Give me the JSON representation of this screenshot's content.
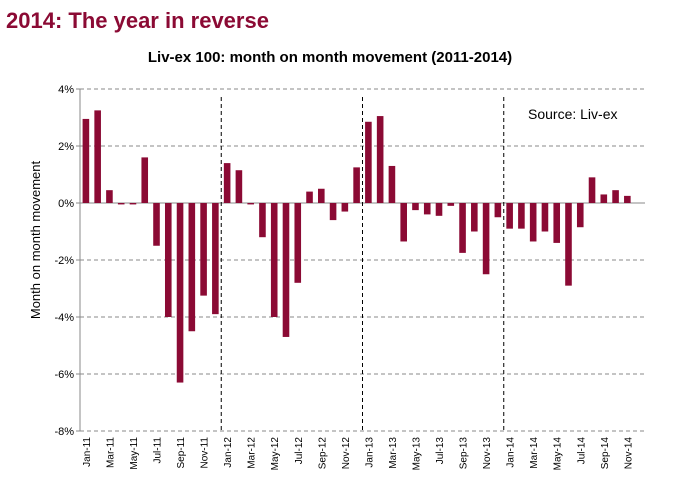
{
  "chart_data": {
    "type": "bar",
    "title": "2014: The year in reverse",
    "subtitle": "Liv-ex 100: month on month movement (2011-2014)",
    "ylabel": "Month on month movement",
    "annotation": "Source: Liv-ex",
    "color": "#8b0a34",
    "grid": true,
    "ylim": [
      -8,
      4
    ],
    "yticks": [
      {
        "value": 4,
        "label": "4%"
      },
      {
        "value": 2,
        "label": "2%"
      },
      {
        "value": 0,
        "label": "0%"
      },
      {
        "value": -2,
        "label": "-2%"
      },
      {
        "value": -4,
        "label": "-4%"
      },
      {
        "value": -6,
        "label": "-6%"
      },
      {
        "value": -8,
        "label": "-8%"
      }
    ],
    "categories": [
      "Jan-11",
      null,
      "Mar-11",
      null,
      "May-11",
      null,
      "Jul-11",
      null,
      "Sep-11",
      null,
      "Nov-11",
      null,
      "Jan-12",
      null,
      "Mar-12",
      null,
      "May-12",
      null,
      "Jul-12",
      null,
      "Sep-12",
      null,
      "Nov-12",
      null,
      "Jan-13",
      null,
      "Mar-13",
      null,
      "May-13",
      null,
      "Jul-13",
      null,
      "Sep-13",
      null,
      "Nov-13",
      null,
      "Jan-14",
      null,
      "Mar-14",
      null,
      "May-14",
      null,
      "Jul-14",
      null,
      "Sep-14",
      null,
      "Nov-14",
      null
    ],
    "values": [
      2.95,
      3.25,
      0.45,
      -0.05,
      -0.05,
      1.6,
      -1.5,
      -4.0,
      -6.3,
      -4.5,
      -3.25,
      -3.9,
      1.4,
      1.15,
      -0.05,
      -1.2,
      -4.0,
      -4.7,
      -2.8,
      0.4,
      0.5,
      -0.6,
      -0.3,
      1.25,
      2.85,
      3.05,
      1.3,
      -1.35,
      -0.25,
      -0.4,
      -0.45,
      -0.1,
      -1.75,
      -1.0,
      -2.5,
      -0.5,
      -0.9,
      -0.9,
      -1.35,
      -1.0,
      -1.4,
      -2.9,
      -0.85,
      0.9,
      0.3,
      0.45,
      0.25,
      null
    ]
  }
}
